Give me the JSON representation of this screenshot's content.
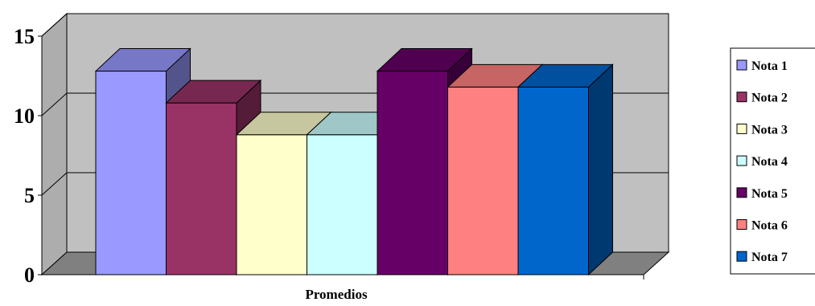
{
  "chart_data": {
    "type": "bar",
    "style": "3d-clustered-column",
    "categories": [
      "Promedios"
    ],
    "series": [
      {
        "name": "Nota 1",
        "values": [
          12.8
        ],
        "color": "#9999FF"
      },
      {
        "name": "Nota 2",
        "values": [
          10.8
        ],
        "color": "#993366"
      },
      {
        "name": "Nota 3",
        "values": [
          8.8
        ],
        "color": "#FFFFCC"
      },
      {
        "name": "Nota 4",
        "values": [
          8.8
        ],
        "color": "#CCFFFF"
      },
      {
        "name": "Nota 5",
        "values": [
          12.8
        ],
        "color": "#660066"
      },
      {
        "name": "Nota 6",
        "values": [
          11.8
        ],
        "color": "#FF8080"
      },
      {
        "name": "Nota 7",
        "values": [
          11.8
        ],
        "color": "#0066CC"
      }
    ],
    "ylim": [
      0,
      15
    ],
    "yticks": [
      "0",
      "5",
      "10",
      "15"
    ],
    "grid": true,
    "legend_position": "right",
    "wall_color": "#C0C0C0",
    "floor_color": "#808080"
  }
}
